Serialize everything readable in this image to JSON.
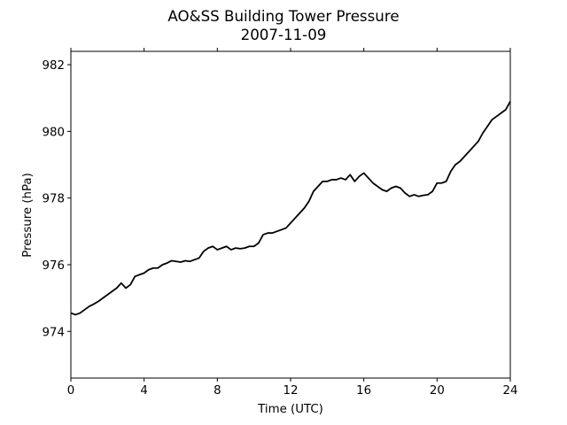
{
  "chart_data": {
    "type": "line",
    "title": "AO&SS Building Tower Pressure",
    "subtitle": "2007-11-09",
    "xlabel": "Time (UTC)",
    "ylabel": "Pressure (hPa)",
    "xlim": [
      0,
      24
    ],
    "ylim": [
      972.6,
      982.4
    ],
    "xticks": [
      0,
      4,
      8,
      12,
      16,
      20,
      24
    ],
    "yticks": [
      974,
      976,
      978,
      980,
      982
    ],
    "grid": false,
    "line_color": "#000000",
    "series": [
      {
        "x": [
          0,
          0.25,
          0.5,
          0.75,
          1,
          1.25,
          1.5,
          1.75,
          2,
          2.25,
          2.5,
          2.75,
          3,
          3.25,
          3.5,
          3.75,
          4,
          4.25,
          4.5,
          4.75,
          5,
          5.25,
          5.5,
          5.75,
          6,
          6.25,
          6.5,
          6.75,
          7,
          7.25,
          7.5,
          7.75,
          8,
          8.25,
          8.5,
          8.75,
          9,
          9.25,
          9.5,
          9.75,
          10,
          10.25,
          10.5,
          10.75,
          11,
          11.25,
          11.5,
          11.75,
          12,
          12.25,
          12.5,
          12.75,
          13,
          13.25,
          13.5,
          13.75,
          14,
          14.25,
          14.5,
          14.75,
          15,
          15.25,
          15.5,
          15.75,
          16,
          16.25,
          16.5,
          16.75,
          17,
          17.25,
          17.5,
          17.75,
          18,
          18.25,
          18.5,
          18.75,
          19,
          19.25,
          19.5,
          19.75,
          20,
          20.25,
          20.5,
          20.75,
          21,
          21.25,
          21.5,
          21.75,
          22,
          22.25,
          22.5,
          22.75,
          23,
          23.25,
          23.5,
          23.75,
          24
        ],
        "y": [
          974.55,
          974.5,
          974.55,
          974.65,
          974.75,
          974.82,
          974.9,
          975.0,
          975.1,
          975.2,
          975.3,
          975.45,
          975.3,
          975.4,
          975.65,
          975.7,
          975.75,
          975.85,
          975.9,
          975.9,
          976.0,
          976.05,
          976.12,
          976.1,
          976.08,
          976.12,
          976.1,
          976.15,
          976.2,
          976.4,
          976.5,
          976.55,
          976.45,
          976.5,
          976.55,
          976.45,
          976.5,
          976.48,
          976.5,
          976.55,
          976.55,
          976.65,
          976.9,
          976.95,
          976.95,
          977.0,
          977.05,
          977.1,
          977.25,
          977.4,
          977.55,
          977.7,
          977.9,
          978.2,
          978.35,
          978.5,
          978.5,
          978.55,
          978.55,
          978.6,
          978.55,
          978.7,
          978.5,
          978.65,
          978.75,
          978.6,
          978.45,
          978.35,
          978.25,
          978.2,
          978.3,
          978.35,
          978.3,
          978.15,
          978.05,
          978.1,
          978.05,
          978.08,
          978.1,
          978.2,
          978.45,
          978.45,
          978.5,
          978.8,
          979.0,
          979.1,
          979.25,
          979.4,
          979.55,
          979.7,
          979.95,
          980.15,
          980.35,
          980.45,
          980.55,
          980.65,
          980.9
        ]
      }
    ]
  }
}
